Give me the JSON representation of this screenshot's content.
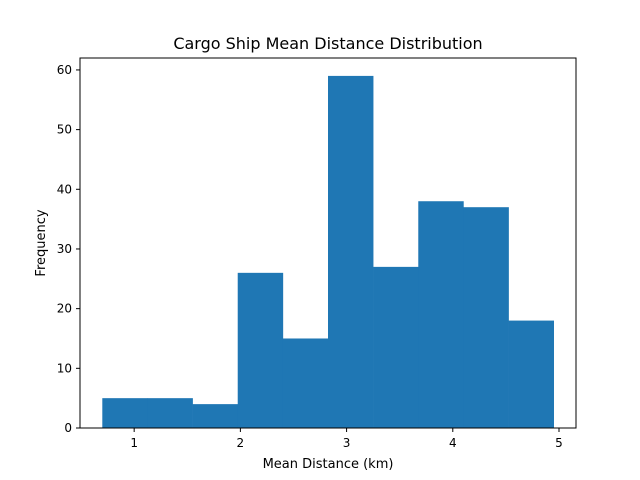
{
  "chart_data": {
    "type": "bar",
    "subtype": "histogram",
    "title": "Cargo Ship Mean Distance Distribution",
    "xlabel": "Mean Distance (km)",
    "ylabel": "Frequency",
    "bin_edges": [
      0.7,
      1.125,
      1.55,
      1.975,
      2.4,
      2.825,
      3.25,
      3.675,
      4.1,
      4.525,
      4.95
    ],
    "values": [
      5,
      5,
      4,
      26,
      15,
      59,
      27,
      38,
      37,
      18
    ],
    "xlim": [
      0.49,
      5.16
    ],
    "ylim": [
      0,
      62
    ],
    "xticks": [
      1,
      2,
      3,
      4,
      5
    ],
    "xtick_labels": [
      "1",
      "2",
      "3",
      "4",
      "5"
    ],
    "yticks": [
      0,
      10,
      20,
      30,
      40,
      50,
      60
    ],
    "ytick_labels": [
      "0",
      "10",
      "20",
      "30",
      "40",
      "50",
      "60"
    ],
    "bar_color": "#1f77b4",
    "grid": false,
    "legend": "none"
  }
}
